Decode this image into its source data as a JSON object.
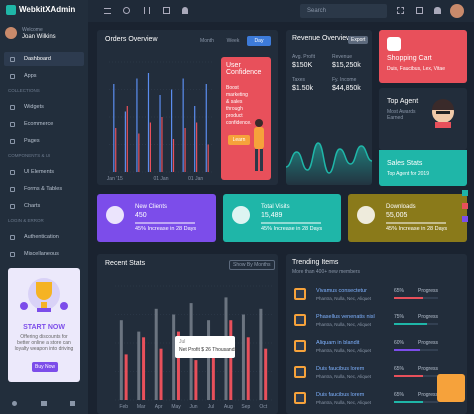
{
  "brand": "WebkitXAdmin",
  "user": {
    "greeting": "Welcome",
    "name": "Joan Wilkins"
  },
  "search": "Search",
  "menu": [
    {
      "label": "Dashboard",
      "active": true
    },
    {
      "label": "Apps"
    },
    {
      "heading": "COLLECTIONS"
    },
    {
      "label": "Widgets"
    },
    {
      "label": "Ecommerce"
    },
    {
      "label": "Pages"
    },
    {
      "heading": "COMPONENTS & UI"
    },
    {
      "label": "UI Elements"
    },
    {
      "label": "Forms & Tables"
    },
    {
      "label": "Charts"
    },
    {
      "heading": "LOGIN & ERROR"
    },
    {
      "label": "Authentication"
    },
    {
      "label": "Miscellaneous"
    }
  ],
  "promo": {
    "title": "START NOW",
    "text": "Offering discounts for better online a store can loyalty weapon into driving",
    "button": "Buy Now"
  },
  "orders": {
    "title": "Orders Overview",
    "tabs": [
      "Month",
      "Week",
      "Day"
    ],
    "active_tab": 2,
    "chart": {
      "categories": [
        "Jan '15",
        null,
        null,
        null,
        "01 Jan",
        null,
        null,
        "01 Jan",
        null
      ],
      "ylim": [
        0,
        100
      ],
      "series": [
        {
          "color": "#5b8def",
          "values": [
            80,
            55,
            85,
            90,
            70,
            75,
            85,
            60,
            80
          ]
        },
        {
          "color": "#e8505b",
          "values": [
            40,
            60,
            35,
            45,
            50,
            30,
            40,
            45,
            25
          ]
        }
      ]
    }
  },
  "confidence": {
    "title": "User Confidence",
    "text": "Boost marketing & sales through product confidence.",
    "button": "Learn"
  },
  "revenue": {
    "title": "Revenue Overview",
    "badge": "Export",
    "stats": [
      {
        "label": "Avg. Profit",
        "value": "$150K"
      },
      {
        "label": "Revenue",
        "value": "$15,250k"
      },
      {
        "label": "Taxes",
        "value": "$1.50k"
      },
      {
        "label": "Fy. Income",
        "value": "$44,850k"
      }
    ],
    "chart": {
      "color": "#1fb6a8",
      "ylim": [
        0,
        100
      ],
      "values": [
        30,
        55,
        25,
        70,
        20,
        60,
        35,
        65,
        40
      ]
    }
  },
  "shopping": {
    "title": "Shopping Cart",
    "subtitle": "Duis, Faucibus, Lex, Vitae"
  },
  "agent": {
    "title": "Top Agent",
    "subtitle": "Most Awards Earned"
  },
  "sales": {
    "title": "Sales Stats",
    "subtitle": "Top Agent for 2019"
  },
  "stat_cards": [
    {
      "title": "New Clients",
      "value": "450",
      "note": "45% Increase in 28 Days",
      "color": "#7c4dea"
    },
    {
      "title": "Total Visits",
      "value": "15,489",
      "note": "45% Increase in 28 Days",
      "color": "#1fb6a8"
    },
    {
      "title": "Downloads",
      "value": "55,005",
      "note": "45% Increase in 28 Days",
      "color": "#8a7a1a"
    }
  ],
  "recent": {
    "title": "Recent Stats",
    "dropdown": "Show By Months",
    "chart": {
      "categories": [
        "Feb",
        "Mar",
        "Apr",
        "May",
        "Jun",
        "Jul",
        "Aug",
        "Sep",
        "Oct"
      ],
      "ylim": [
        0,
        100
      ],
      "series": [
        {
          "color": "#6b7480",
          "values": [
            70,
            60,
            80,
            75,
            85,
            70,
            90,
            75,
            80
          ]
        },
        {
          "color": "#e8505b",
          "values": [
            40,
            55,
            45,
            60,
            35,
            50,
            70,
            55,
            45
          ]
        }
      ]
    },
    "tooltip": {
      "title": "Jul",
      "text": "Net Profit $ 26 Thousands"
    }
  },
  "trending": {
    "title": "Trending Items",
    "subtitle": "More than 400+ new members",
    "items": [
      {
        "name": "Vivamus consectetur",
        "tags": "Phantra, Nulla, Nec, Aliquet",
        "percent": {
          "value": 65,
          "label": "65%"
        },
        "status": "Progress",
        "color": "#e8505b"
      },
      {
        "name": "Phasellus venenatis nisl",
        "tags": "Phantra, Nulla, Nec, Aliquet",
        "percent": {
          "value": 75,
          "label": "75%"
        },
        "status": "Progress",
        "color": "#1fb6a8"
      },
      {
        "name": "Aliquam in blandit",
        "tags": "Phantra, Nulla, Nec, Aliquet",
        "percent": {
          "value": 60,
          "label": "60%"
        },
        "status": "Progress",
        "color": "#7c4dea"
      },
      {
        "name": "Duis faucibus lorem",
        "tags": "Phantra, Nulla, Nec, Aliquet",
        "percent": {
          "value": 65,
          "label": "65%"
        },
        "status": "Progress",
        "color": "#e8505b"
      },
      {
        "name": "Duis faucibus lorem",
        "tags": "Phantra, Nulla, Nec, Aliquet",
        "percent": {
          "value": 65,
          "label": "65%"
        },
        "status": "Progress",
        "color": "#1fb6a8"
      }
    ]
  }
}
